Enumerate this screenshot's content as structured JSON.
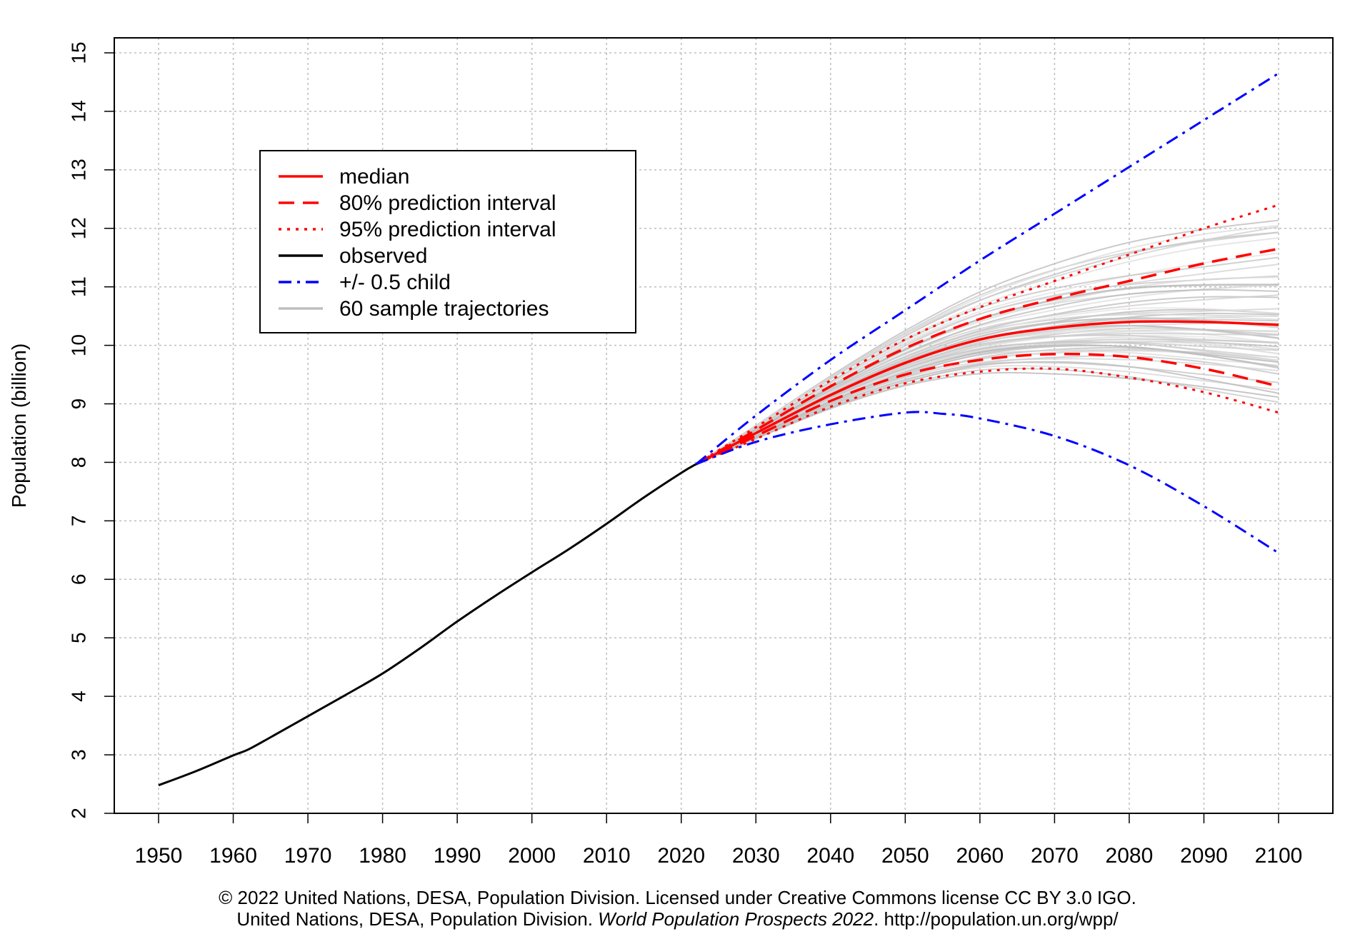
{
  "chart_data": {
    "type": "line",
    "title": "",
    "xlabel": "",
    "ylabel": "Population (billion)",
    "xlim": [
      1944,
      2106
    ],
    "ylim": [
      2,
      15
    ],
    "x_ticks": [
      1950,
      1960,
      1970,
      1980,
      1990,
      2000,
      2010,
      2020,
      2030,
      2040,
      2050,
      2060,
      2070,
      2080,
      2090,
      2100
    ],
    "y_ticks": [
      2,
      3,
      4,
      5,
      6,
      7,
      8,
      9,
      10,
      11,
      12,
      13,
      14,
      15
    ],
    "grid": true,
    "legend_position": "top-left",
    "legend": [
      {
        "label": "median",
        "color": "#ff0000",
        "style": "solid"
      },
      {
        "label": "80% prediction interval",
        "color": "#ff0000",
        "style": "dashed"
      },
      {
        "label": "95% prediction interval",
        "color": "#ff0000",
        "style": "dotted"
      },
      {
        "label": "observed",
        "color": "#000000",
        "style": "solid"
      },
      {
        "label": "+/- 0.5 child",
        "color": "#0000ff",
        "style": "dashdot"
      },
      {
        "label": "60 sample trajectories",
        "color": "#bebebe",
        "style": "solid"
      }
    ],
    "series": [
      {
        "name": "observed",
        "x": [
          1950,
          1955,
          1960,
          1962,
          1965,
          1970,
          1975,
          1980,
          1985,
          1990,
          1995,
          2000,
          2005,
          2010,
          2015,
          2020,
          2022
        ],
        "values": [
          2.48,
          2.72,
          2.99,
          3.09,
          3.3,
          3.66,
          4.02,
          4.39,
          4.82,
          5.28,
          5.71,
          6.12,
          6.52,
          6.95,
          7.4,
          7.82,
          7.97
        ]
      },
      {
        "name": "median",
        "x": [
          2022,
          2030,
          2040,
          2050,
          2060,
          2070,
          2080,
          2090,
          2100
        ],
        "values": [
          7.97,
          8.5,
          9.15,
          9.7,
          10.1,
          10.3,
          10.4,
          10.4,
          10.35
        ]
      },
      {
        "name": "80% upper",
        "x": [
          2022,
          2030,
          2040,
          2050,
          2060,
          2070,
          2080,
          2090,
          2100
        ],
        "values": [
          7.97,
          8.55,
          9.3,
          9.95,
          10.45,
          10.8,
          11.1,
          11.4,
          11.65
        ]
      },
      {
        "name": "80% lower",
        "x": [
          2022,
          2030,
          2040,
          2050,
          2060,
          2070,
          2080,
          2090,
          2100
        ],
        "values": [
          7.97,
          8.45,
          9.05,
          9.5,
          9.75,
          9.85,
          9.8,
          9.6,
          9.3
        ]
      },
      {
        "name": "95% upper",
        "x": [
          2022,
          2030,
          2040,
          2050,
          2060,
          2070,
          2080,
          2090,
          2100
        ],
        "values": [
          7.97,
          8.6,
          9.4,
          10.1,
          10.65,
          11.1,
          11.55,
          12.0,
          12.4
        ]
      },
      {
        "name": "95% lower",
        "x": [
          2022,
          2030,
          2040,
          2050,
          2060,
          2070,
          2080,
          2090,
          2100
        ],
        "values": [
          7.97,
          8.4,
          8.95,
          9.35,
          9.55,
          9.6,
          9.45,
          9.2,
          8.85
        ]
      },
      {
        "name": "+0.5 child",
        "x": [
          2022,
          2030,
          2040,
          2050,
          2060,
          2070,
          2080,
          2090,
          2100
        ],
        "values": [
          7.97,
          8.8,
          9.75,
          10.6,
          11.45,
          12.25,
          13.05,
          13.85,
          14.65
        ]
      },
      {
        "name": "-0.5 child",
        "x": [
          2022,
          2030,
          2040,
          2050,
          2055,
          2060,
          2070,
          2080,
          2090,
          2100
        ],
        "values": [
          7.97,
          8.35,
          8.65,
          8.85,
          8.83,
          8.75,
          8.45,
          7.95,
          7.25,
          6.45
        ]
      }
    ],
    "sample_trajectories_count": 60,
    "sample_trajectories_endpoints_2100": [
      9.2,
      9.5,
      9.7,
      9.8,
      9.9,
      10.0,
      10.1,
      10.2,
      10.3,
      10.4,
      10.5,
      10.6,
      10.8,
      11.0,
      11.2,
      11.5,
      11.8,
      12.1
    ]
  },
  "footer": {
    "line1": "© 2022 United Nations, DESA, Population Division. Licensed under Creative Commons license CC BY 3.0 IGO.",
    "line2_prefix": "United Nations, DESA, Population Division. ",
    "line2_italic": "World Population Prospects 2022",
    "line2_suffix": ". http://population.un.org/wpp/"
  }
}
